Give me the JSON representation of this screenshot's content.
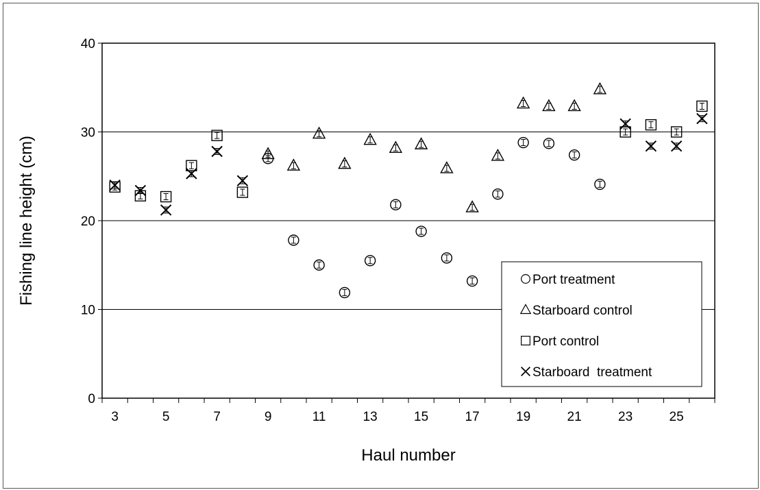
{
  "chart_data": {
    "type": "scatter",
    "xlabel": "Haul number",
    "ylabel": "Fishing line height (cm)",
    "xlim": [
      2.5,
      26.5
    ],
    "ylim": [
      0,
      40
    ],
    "x_ticks": [
      3,
      5,
      7,
      9,
      11,
      13,
      15,
      17,
      19,
      21,
      23,
      25
    ],
    "y_ticks": [
      0,
      10,
      20,
      30,
      40
    ],
    "grid": "horizontal",
    "legend_position": "bottom-right",
    "series": [
      {
        "name": "Port treatment",
        "marker": "circle",
        "x": [
          9,
          10,
          11,
          12,
          13,
          14,
          15,
          16,
          17,
          18,
          19,
          20,
          21,
          22
        ],
        "y": [
          27.0,
          17.8,
          15.0,
          11.9,
          15.5,
          21.8,
          18.8,
          15.8,
          13.2,
          23.0,
          28.8,
          28.7,
          27.4,
          24.1
        ]
      },
      {
        "name": "Starboard control",
        "marker": "triangle",
        "x": [
          9,
          10,
          11,
          12,
          13,
          14,
          15,
          16,
          17,
          18,
          19,
          20,
          21,
          22
        ],
        "y": [
          27.5,
          26.2,
          29.8,
          26.4,
          29.1,
          28.2,
          28.6,
          25.9,
          21.5,
          27.3,
          33.2,
          32.9,
          32.9,
          34.8
        ]
      },
      {
        "name": "Port control",
        "marker": "square",
        "x": [
          3,
          4,
          5,
          6,
          7,
          8,
          23,
          24,
          25,
          26
        ],
        "y": [
          23.8,
          22.8,
          22.7,
          26.2,
          29.6,
          23.2,
          30.0,
          30.8,
          30.0,
          32.9
        ]
      },
      {
        "name": "Starboard  treatment",
        "marker": "x",
        "x": [
          3,
          4,
          5,
          6,
          7,
          8,
          23,
          24,
          25,
          26
        ],
        "y": [
          24.0,
          23.4,
          21.2,
          25.3,
          27.8,
          24.5,
          30.9,
          28.4,
          28.4,
          31.5
        ]
      }
    ]
  }
}
